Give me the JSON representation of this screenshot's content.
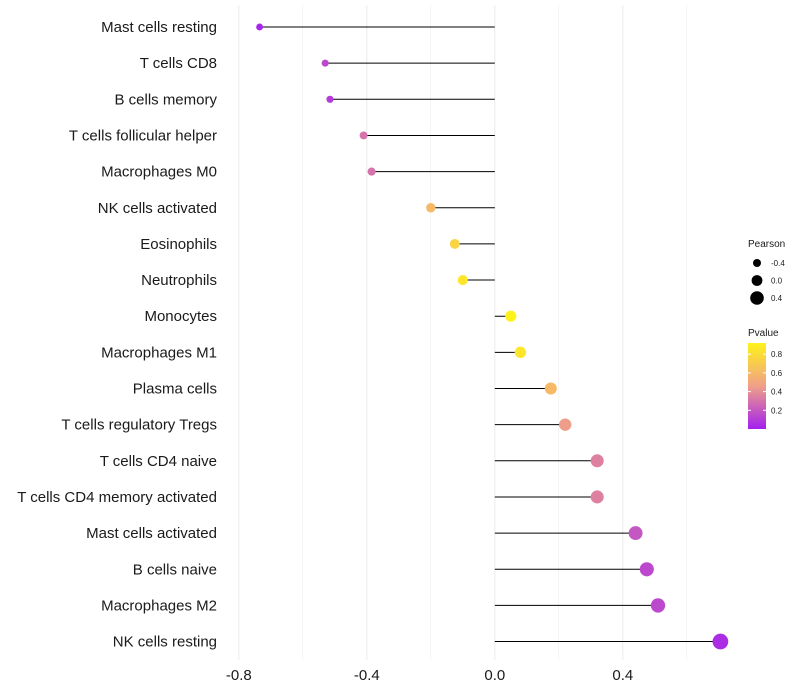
{
  "chart_data": {
    "type": "lollipop",
    "title": "",
    "xlabel": "",
    "ylabel": "",
    "xlim": [
      -0.84,
      0.76
    ],
    "xticks": [
      -0.8,
      -0.4,
      0.0,
      0.4
    ],
    "xtick_labels": [
      "-0.8",
      "-0.4",
      "0.0",
      "0.4"
    ],
    "grid": true,
    "legend_position": "right",
    "colors": {
      "low": "#a31fef",
      "mid": "#f0a088",
      "high": "#fff21a",
      "stem": "#000000",
      "grid": "#ebebeb"
    },
    "categories": [
      "Mast cells resting",
      "T cells CD8",
      "B cells memory",
      "T cells follicular helper",
      "Macrophages M0",
      "NK cells activated",
      "Eosinophils",
      "Neutrophils",
      "Monocytes",
      "Macrophages M1",
      "Plasma cells",
      "T cells regulatory  Tregs",
      "T cells CD4 naive",
      "T cells CD4 memory activated",
      "Mast cells activated",
      "B cells naive",
      "Macrophages M2",
      "NK cells resting"
    ],
    "series": [
      {
        "name": "Pearson",
        "values": [
          -0.735,
          -0.53,
          -0.515,
          -0.41,
          -0.385,
          -0.2,
          -0.125,
          -0.1,
          0.05,
          0.08,
          0.175,
          0.22,
          0.32,
          0.32,
          0.44,
          0.475,
          0.51,
          0.705
        ]
      },
      {
        "name": "Pvalue",
        "values": [
          0.02,
          0.15,
          0.1,
          0.3,
          0.3,
          0.6,
          0.75,
          0.85,
          0.95,
          0.85,
          0.6,
          0.45,
          0.35,
          0.35,
          0.2,
          0.15,
          0.15,
          0.05
        ]
      }
    ],
    "legend": {
      "size": {
        "title": "Pearson",
        "values": [
          -0.4,
          0.0,
          0.4
        ],
        "labels": [
          "-0.4",
          "0.0",
          "0.4"
        ]
      },
      "color": {
        "title": "Pvalue",
        "range": [
          0.0,
          0.92
        ],
        "ticks": [
          0.2,
          0.4,
          0.6,
          0.8
        ],
        "labels": [
          "0.2",
          "0.4",
          "0.6",
          "0.8"
        ]
      }
    }
  }
}
